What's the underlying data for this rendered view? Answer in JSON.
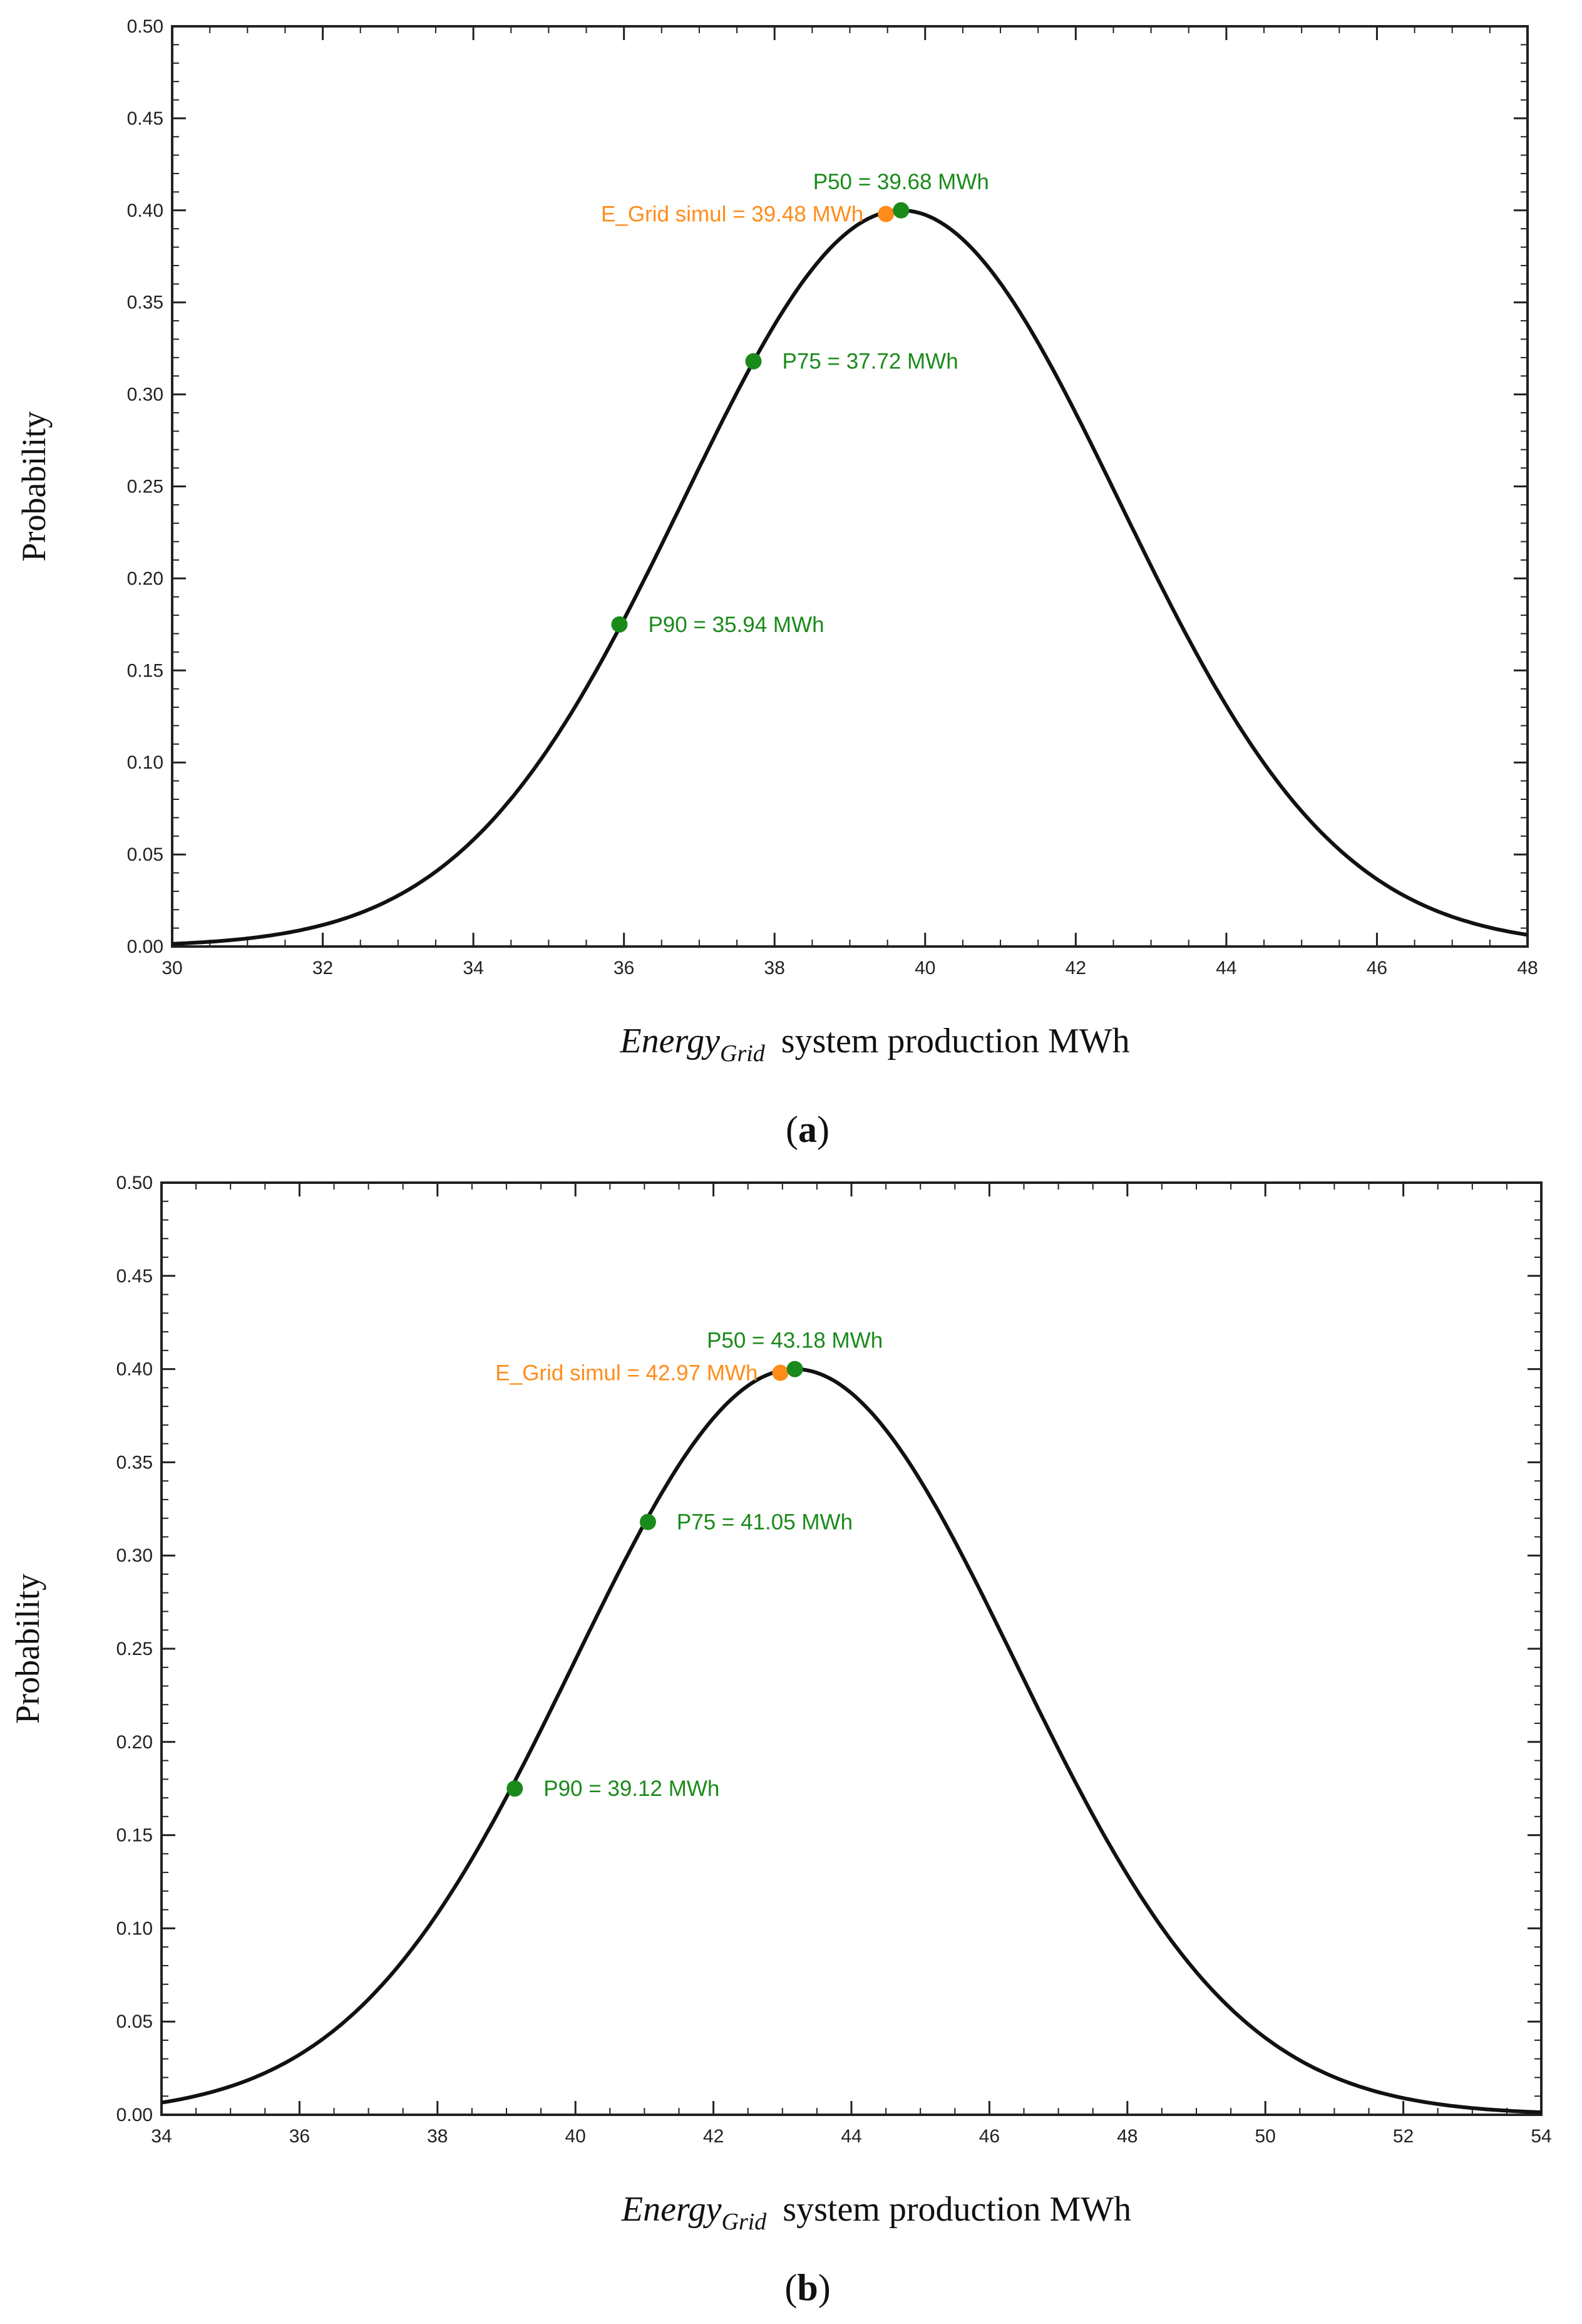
{
  "chart_data": [
    {
      "type": "line",
      "panel": "(a)",
      "caption_letter": "a",
      "title": "",
      "xlabel": {
        "italic": "Energy",
        "subscript": "Grid",
        "rest": "system production MWh"
      },
      "ylabel": "Probability",
      "xlim": [
        30,
        48
      ],
      "ylim": [
        0,
        0.5
      ],
      "xticks": [
        30,
        32,
        34,
        36,
        38,
        40,
        42,
        44,
        46,
        48
      ],
      "yticks": [
        "0.00",
        "0.05",
        "0.10",
        "0.15",
        "0.20",
        "0.25",
        "0.30",
        "0.35",
        "0.40",
        "0.45",
        "0.50"
      ],
      "curve": {
        "type": "normal-density-scaled",
        "mean": 39.68,
        "sd": 2.89,
        "peak": 0.4
      },
      "points": [
        {
          "name": "P50",
          "x": 39.68,
          "y": 0.4,
          "label": "P50 = 39.68 MWh",
          "color": "#1a8a1a",
          "label_pos": "above"
        },
        {
          "name": "E_Grid simul",
          "x": 39.48,
          "y": 0.398,
          "label": "E_Grid simul = 39.48 MWh",
          "color": "#ff8c1a",
          "label_pos": "left"
        },
        {
          "name": "P75",
          "x": 37.72,
          "y": 0.318,
          "label": "P75 = 37.72 MWh",
          "color": "#1a8a1a",
          "label_pos": "right"
        },
        {
          "name": "P90",
          "x": 35.94,
          "y": 0.175,
          "label": "P90 = 35.94 MWh",
          "color": "#1a8a1a",
          "label_pos": "right"
        }
      ]
    },
    {
      "type": "line",
      "panel": "(b)",
      "caption_letter": "b",
      "title": "",
      "xlabel": {
        "italic": "Energy",
        "subscript": "Grid",
        "rest": "system production MWh"
      },
      "ylabel": "Probability",
      "xlim": [
        34,
        54
      ],
      "ylim": [
        0,
        0.5
      ],
      "xticks": [
        34,
        36,
        38,
        40,
        42,
        44,
        46,
        48,
        50,
        52,
        54
      ],
      "yticks": [
        "0.00",
        "0.05",
        "0.10",
        "0.15",
        "0.20",
        "0.25",
        "0.30",
        "0.35",
        "0.40",
        "0.45",
        "0.50"
      ],
      "curve": {
        "type": "normal-density-scaled",
        "mean": 43.18,
        "sd": 3.2,
        "peak": 0.4
      },
      "points": [
        {
          "name": "P50",
          "x": 43.18,
          "y": 0.4,
          "label": "P50 = 43.18 MWh",
          "color": "#1a8a1a",
          "label_pos": "above"
        },
        {
          "name": "E_Grid simul",
          "x": 42.97,
          "y": 0.398,
          "label": "E_Grid simul = 42.97 MWh",
          "color": "#ff8c1a",
          "label_pos": "left"
        },
        {
          "name": "P75",
          "x": 41.05,
          "y": 0.318,
          "label": "P75 = 41.05 MWh",
          "color": "#1a8a1a",
          "label_pos": "right"
        },
        {
          "name": "P90",
          "x": 39.12,
          "y": 0.175,
          "label": "P90 = 39.12 MWh",
          "color": "#1a8a1a",
          "label_pos": "right"
        }
      ]
    }
  ]
}
